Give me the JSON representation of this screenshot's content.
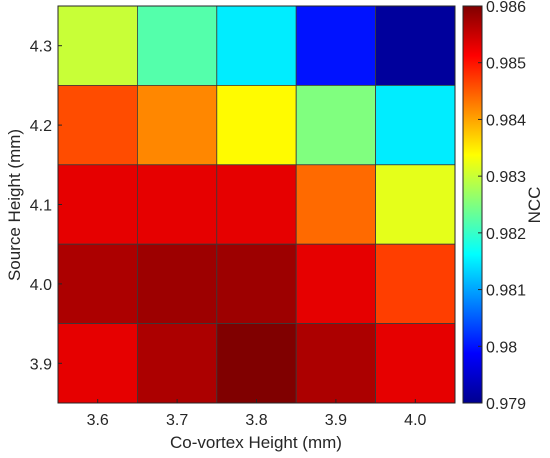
{
  "chart_data": {
    "type": "heatmap",
    "title": "",
    "xlabel": "Co-vortex Height (mm)",
    "ylabel": "Source Height (mm)",
    "x_categories": [
      "3.6",
      "3.7",
      "3.8",
      "3.9",
      "4.0"
    ],
    "y_categories": [
      "4.3",
      "4.2",
      "4.1",
      "4.0",
      "3.9"
    ],
    "values": [
      [
        0.983,
        0.9822,
        0.9815,
        0.98,
        0.9791
      ],
      [
        0.9846,
        0.9842,
        0.9834,
        0.9825,
        0.9815
      ],
      [
        0.9853,
        0.9853,
        0.9853,
        0.9844,
        0.9832
      ],
      [
        0.9857,
        0.9858,
        0.9858,
        0.9853,
        0.9847
      ],
      [
        0.9853,
        0.9857,
        0.986,
        0.9857,
        0.9853
      ]
    ],
    "colorbar": {
      "label": "NCC",
      "min": 0.979,
      "max": 0.986,
      "ticks": [
        "0.979",
        "0.98",
        "0.981",
        "0.982",
        "0.983",
        "0.984",
        "0.985",
        "0.986"
      ],
      "colormap": "jet"
    },
    "grid": false
  }
}
